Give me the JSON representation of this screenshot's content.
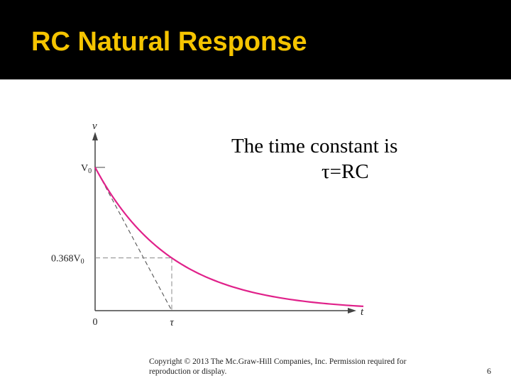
{
  "slide": {
    "title": "RC Natural Response",
    "note_line1": "The time constant is",
    "note_line2": "τ=RC",
    "copyright": "Copyright © 2013 The Mc.Graw-Hill Companies, Inc. Permission required for reproduction or display.",
    "page_number": "6"
  },
  "chart_data": {
    "type": "line",
    "title": "",
    "xlabel": "t",
    "ylabel": "v",
    "x_tick_labels": [
      "0",
      "τ"
    ],
    "y_tick_labels": [
      "V0",
      "0.368V0"
    ],
    "series": [
      {
        "x": [
          0,
          0.25,
          0.5,
          0.75,
          1,
          1.25,
          1.5,
          1.75,
          2,
          2.25,
          2.5,
          2.75,
          3,
          3.25,
          3.5
        ],
        "values": [
          1,
          0.779,
          0.607,
          0.472,
          0.368,
          0.287,
          0.223,
          0.174,
          0.135,
          0.105,
          0.082,
          0.064,
          0.05,
          0.039,
          0.03
        ]
      }
    ],
    "annotations": [
      {
        "type": "tangent",
        "from": [
          0,
          1
        ],
        "to": [
          1,
          0
        ]
      },
      {
        "type": "guide",
        "from": [
          0,
          0.368
        ],
        "to": [
          1,
          0.368
        ]
      },
      {
        "type": "guide",
        "from": [
          1,
          0.368
        ],
        "to": [
          1,
          0
        ]
      }
    ],
    "curve_color": "#e0218a",
    "xlim": [
      0,
      4.2
    ],
    "ylim": [
      0,
      1.2
    ],
    "grid": false
  }
}
